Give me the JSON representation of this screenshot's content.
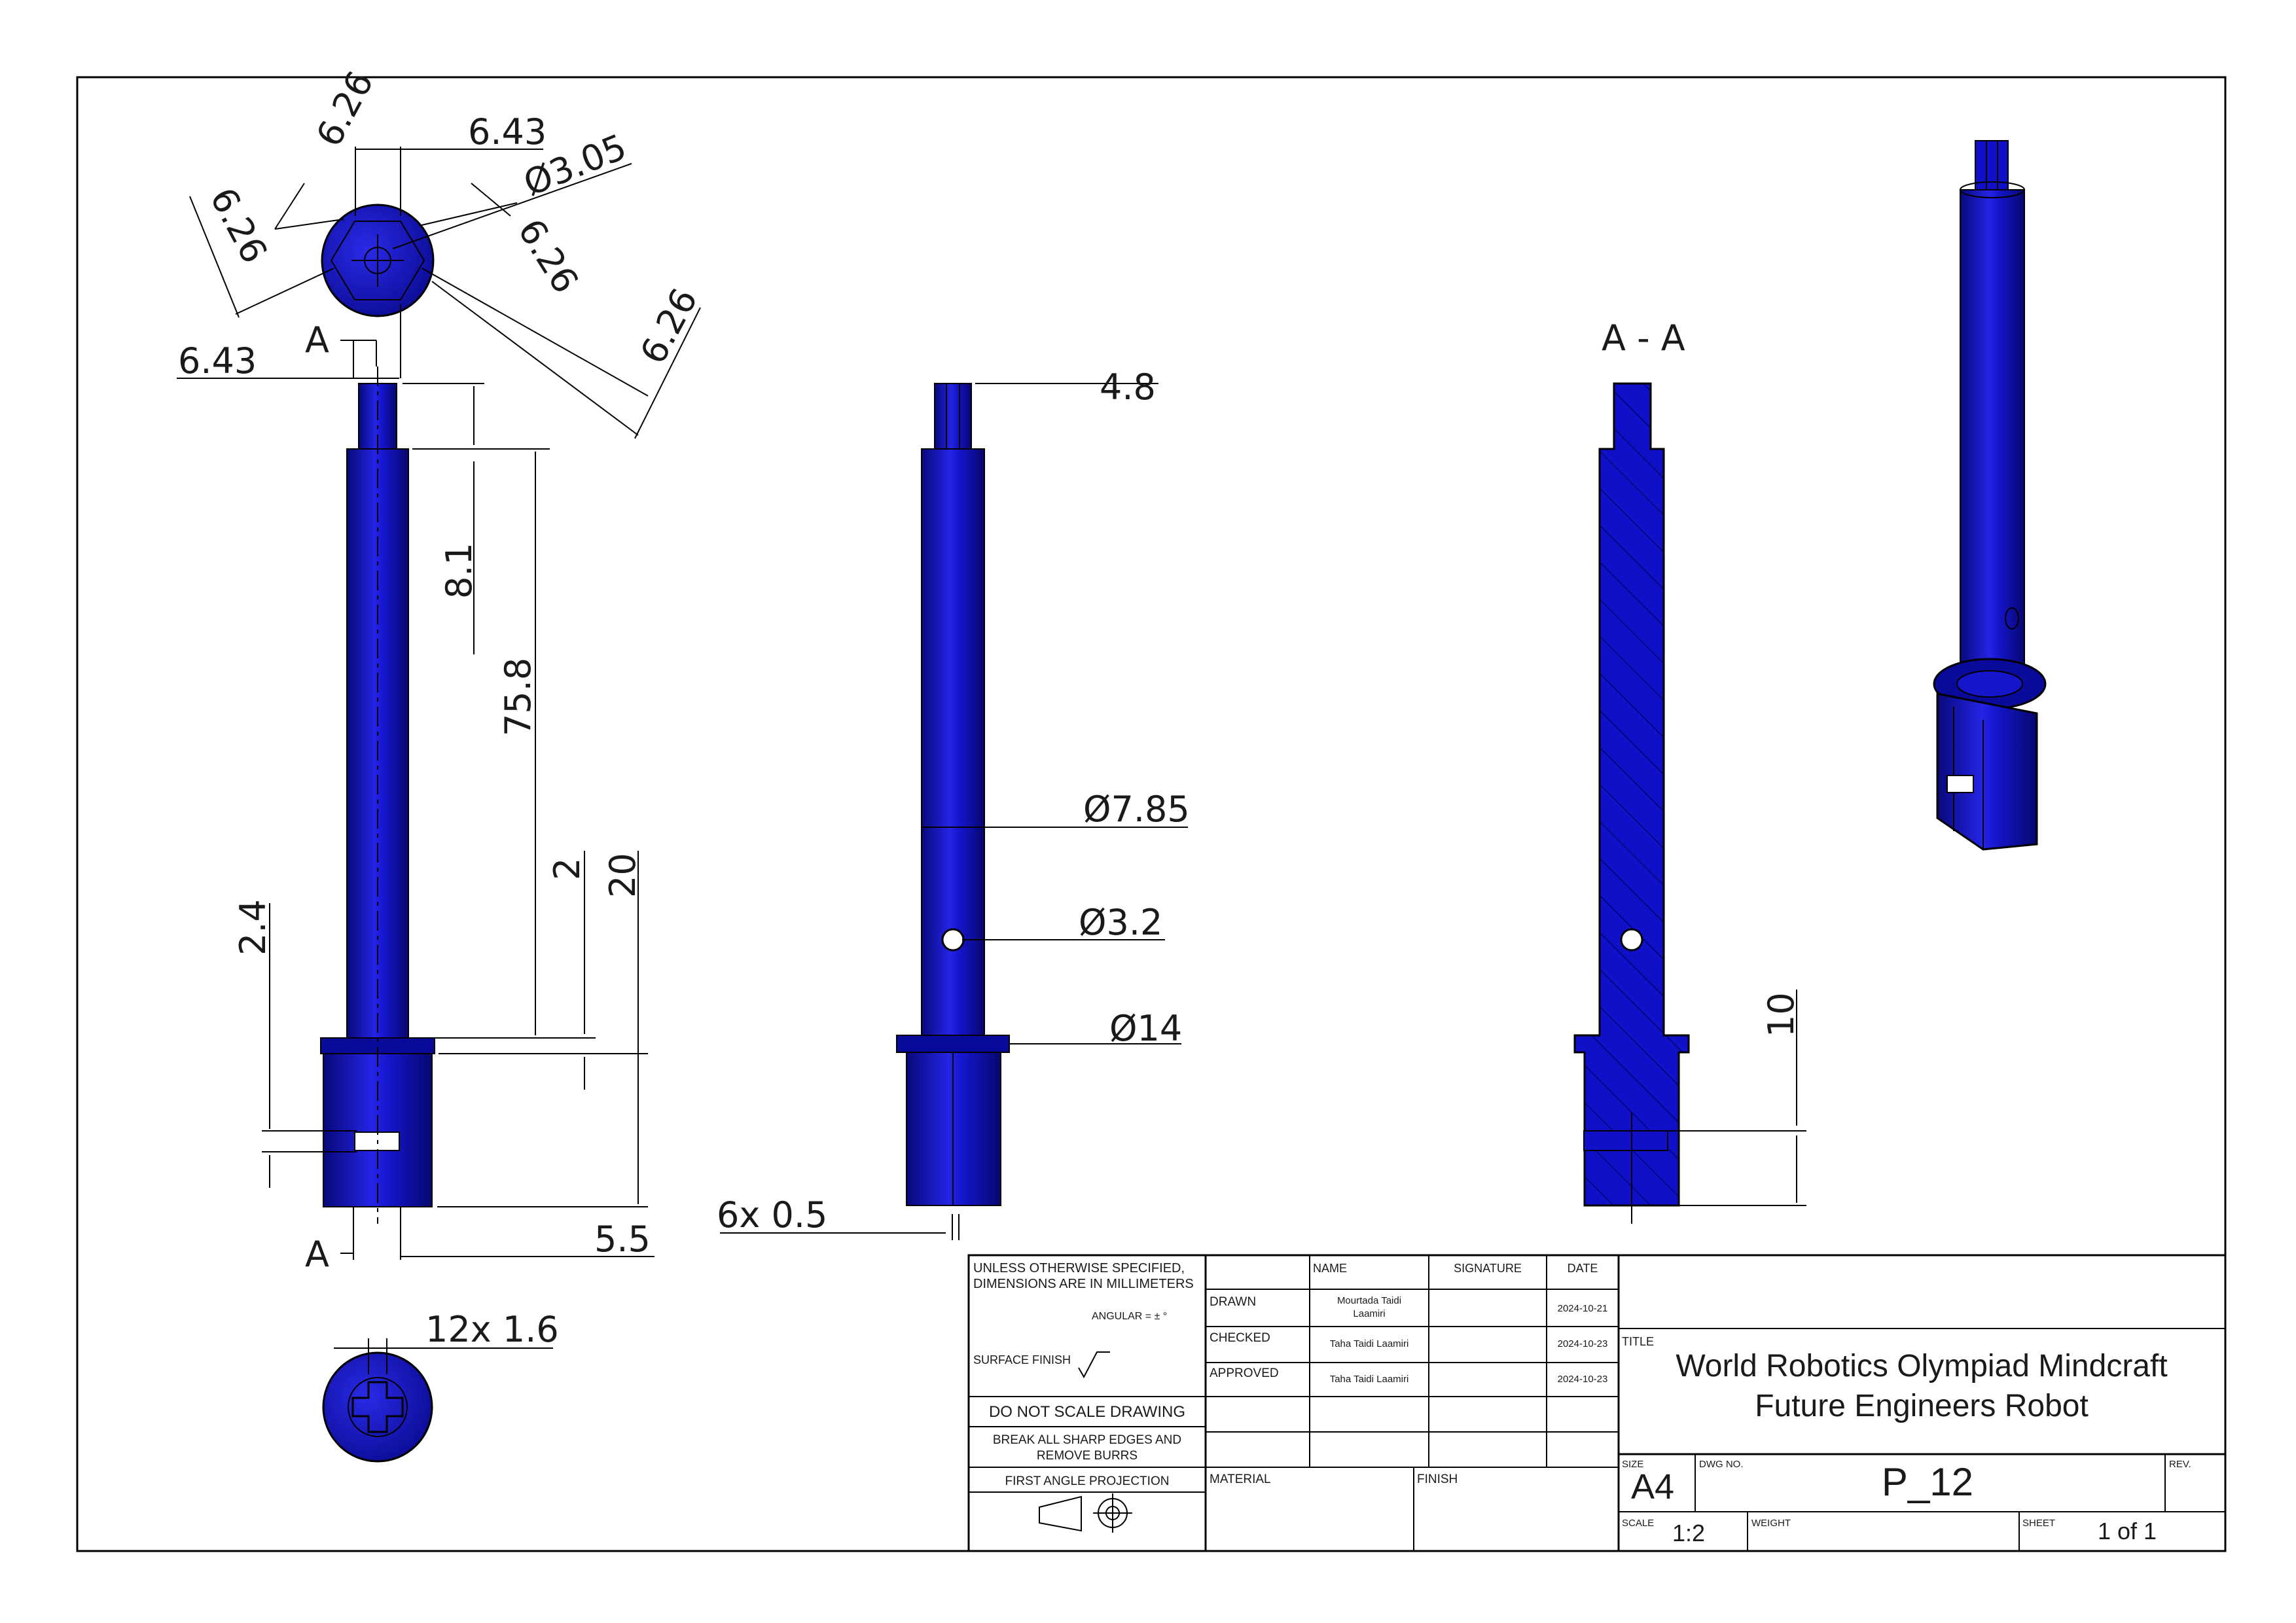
{
  "colors": {
    "part": "#1010c8",
    "part_dark": "#050580",
    "part_light": "#2a2ae8",
    "line": "#000000"
  },
  "views": {
    "top_view": {
      "dims": [
        "6.26",
        "6.43",
        "Ø3.05",
        "6.26",
        "6.26",
        "6.43",
        "6.26"
      ],
      "section_letter": "A"
    },
    "front_view": {
      "dims": [
        "8.1",
        "75.8",
        "2",
        "20",
        "2.4",
        "5.5"
      ],
      "section_letter": "A"
    },
    "bottom_view": {
      "dims": [
        "12x 1.6"
      ]
    },
    "side_view": {
      "dims": [
        "4.8",
        "Ø7.85",
        "Ø3.2",
        "Ø14",
        "6x 0.5"
      ]
    },
    "section_view": {
      "title": "A - A",
      "dims": [
        "10"
      ]
    }
  },
  "title_block": {
    "notes": {
      "unless": "UNLESS OTHERWISE SPECIFIED,",
      "dimensions": "DIMENSIONS ARE IN MILLIMETERS",
      "angular": "ANGULAR = ± °",
      "surface": "SURFACE FINISH",
      "do_not_scale": "DO NOT SCALE DRAWING",
      "break_edges_1": "BREAK ALL SHARP EDGES AND",
      "break_edges_2": "REMOVE BURRS",
      "projection": "FIRST ANGLE PROJECTION"
    },
    "headers": {
      "name": "NAME",
      "signature": "SIGNATURE",
      "date": "DATE"
    },
    "rows": [
      {
        "role": "DRAWN",
        "name_1": "Mourtada Taidi",
        "name_2": "Laamiri",
        "date": "2024-10-21"
      },
      {
        "role": "CHECKED",
        "name_1": "Taha Taidi Laamiri",
        "name_2": "",
        "date": "2024-10-23"
      },
      {
        "role": "APPROVED",
        "name_1": "Taha Taidi Laamiri",
        "name_2": "",
        "date": "2024-10-23"
      }
    ],
    "material_label": "MATERIAL",
    "finish_label": "FINISH",
    "title_label": "TITLE",
    "title_line_1": "World Robotics Olympiad Mindcraft",
    "title_line_2": "Future Engineers Robot",
    "size_label": "SIZE",
    "size": "A4",
    "dwg_label": "DWG NO.",
    "dwg_no": "P_12",
    "rev_label": "REV.",
    "scale_label": "SCALE",
    "scale": "1:2",
    "weight_label": "WEIGHT",
    "sheet_label": "SHEET",
    "sheet": "1 of 1"
  }
}
